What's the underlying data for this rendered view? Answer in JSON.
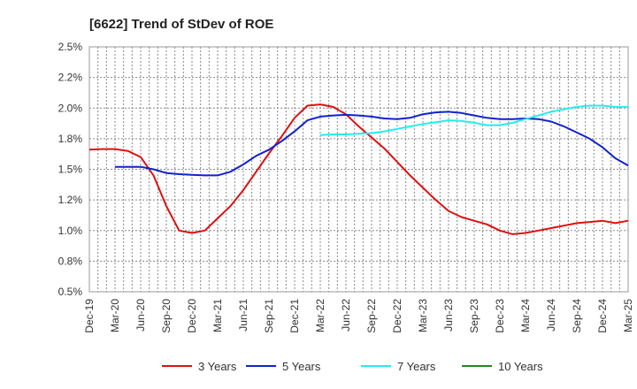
{
  "chart_data": {
    "type": "line",
    "title": "[6622]  Trend of StDev of ROE",
    "xlabel": "",
    "ylabel": "",
    "ylim": [
      0.5,
      2.5
    ],
    "yticks": [
      "2.5%",
      "2.2%",
      "2.0%",
      "1.8%",
      "1.5%",
      "1.2%",
      "1.0%",
      "0.8%",
      "0.5%"
    ],
    "ytick_values": [
      2.5,
      2.25,
      2.0,
      1.75,
      1.5,
      1.25,
      1.0,
      0.75,
      0.5
    ],
    "xticks": [
      "Dec-19",
      "Mar-20",
      "Jun-20",
      "Sep-20",
      "Dec-20",
      "Mar-21",
      "Jun-21",
      "Sep-21",
      "Dec-21",
      "Mar-22",
      "Jun-22",
      "Sep-22",
      "Dec-22",
      "Mar-23",
      "Jun-23",
      "Sep-23",
      "Dec-23",
      "Mar-24",
      "Jun-24",
      "Sep-24",
      "Dec-24",
      "Mar-25"
    ],
    "grid": true,
    "legend_position": "bottom",
    "series": [
      {
        "name": "3 Years",
        "color": "#dd1111",
        "points": [
          [
            0,
            1.66
          ],
          [
            0.5,
            1.665
          ],
          [
            1,
            1.665
          ],
          [
            1.5,
            1.65
          ],
          [
            2,
            1.6
          ],
          [
            2.5,
            1.45
          ],
          [
            3,
            1.2
          ],
          [
            3.5,
            1.0
          ],
          [
            4,
            0.98
          ],
          [
            4.5,
            1.0
          ],
          [
            5,
            1.1
          ],
          [
            5.5,
            1.2
          ],
          [
            6,
            1.33
          ],
          [
            6.5,
            1.48
          ],
          [
            7,
            1.63
          ],
          [
            7.5,
            1.77
          ],
          [
            8,
            1.92
          ],
          [
            8.5,
            2.02
          ],
          [
            9,
            2.03
          ],
          [
            9.5,
            2.01
          ],
          [
            10,
            1.95
          ],
          [
            10.5,
            1.85
          ],
          [
            11,
            1.76
          ],
          [
            11.5,
            1.67
          ],
          [
            12,
            1.56
          ],
          [
            12.5,
            1.45
          ],
          [
            13,
            1.35
          ],
          [
            13.5,
            1.25
          ],
          [
            14,
            1.16
          ],
          [
            14.5,
            1.11
          ],
          [
            15,
            1.08
          ],
          [
            15.5,
            1.05
          ],
          [
            16,
            1.0
          ],
          [
            16.5,
            0.97
          ],
          [
            17,
            0.98
          ],
          [
            17.5,
            1.0
          ],
          [
            18,
            1.02
          ],
          [
            18.5,
            1.04
          ],
          [
            19,
            1.06
          ],
          [
            19.5,
            1.07
          ],
          [
            20,
            1.08
          ],
          [
            20.5,
            1.06
          ],
          [
            21,
            1.08
          ]
        ]
      },
      {
        "name": "5 Years",
        "color": "#1122cc",
        "points": [
          [
            1,
            1.52
          ],
          [
            1.5,
            1.52
          ],
          [
            2,
            1.52
          ],
          [
            2.5,
            1.5
          ],
          [
            3,
            1.47
          ],
          [
            3.5,
            1.46
          ],
          [
            4,
            1.455
          ],
          [
            4.5,
            1.45
          ],
          [
            5,
            1.45
          ],
          [
            5.5,
            1.48
          ],
          [
            6,
            1.54
          ],
          [
            6.5,
            1.61
          ],
          [
            7,
            1.66
          ],
          [
            7.5,
            1.73
          ],
          [
            8,
            1.81
          ],
          [
            8.5,
            1.9
          ],
          [
            9,
            1.93
          ],
          [
            9.5,
            1.94
          ],
          [
            10,
            1.945
          ],
          [
            10.5,
            1.94
          ],
          [
            11,
            1.93
          ],
          [
            11.5,
            1.915
          ],
          [
            12,
            1.91
          ],
          [
            12.5,
            1.92
          ],
          [
            13,
            1.95
          ],
          [
            13.5,
            1.965
          ],
          [
            14,
            1.97
          ],
          [
            14.5,
            1.96
          ],
          [
            15,
            1.94
          ],
          [
            15.5,
            1.92
          ],
          [
            16,
            1.91
          ],
          [
            16.5,
            1.91
          ],
          [
            17,
            1.915
          ],
          [
            17.5,
            1.91
          ],
          [
            18,
            1.89
          ],
          [
            18.5,
            1.85
          ],
          [
            19,
            1.8
          ],
          [
            19.5,
            1.75
          ],
          [
            20,
            1.68
          ],
          [
            20.5,
            1.59
          ],
          [
            21,
            1.53
          ]
        ]
      },
      {
        "name": "7 Years",
        "color": "#22eeee",
        "points": [
          [
            9,
            1.78
          ],
          [
            9.5,
            1.785
          ],
          [
            10,
            1.785
          ],
          [
            10.5,
            1.79
          ],
          [
            11,
            1.795
          ],
          [
            11.5,
            1.81
          ],
          [
            12,
            1.83
          ],
          [
            12.5,
            1.85
          ],
          [
            13,
            1.87
          ],
          [
            13.5,
            1.885
          ],
          [
            14,
            1.9
          ],
          [
            14.5,
            1.895
          ],
          [
            15,
            1.88
          ],
          [
            15.5,
            1.86
          ],
          [
            16,
            1.86
          ],
          [
            16.5,
            1.88
          ],
          [
            17,
            1.91
          ],
          [
            17.5,
            1.94
          ],
          [
            18,
            1.97
          ],
          [
            18.5,
            1.99
          ],
          [
            19,
            2.01
          ],
          [
            19.5,
            2.02
          ],
          [
            20,
            2.02
          ],
          [
            20.5,
            2.01
          ],
          [
            21,
            2.01
          ]
        ]
      },
      {
        "name": "10 Years",
        "color": "#228822",
        "points": []
      }
    ]
  }
}
